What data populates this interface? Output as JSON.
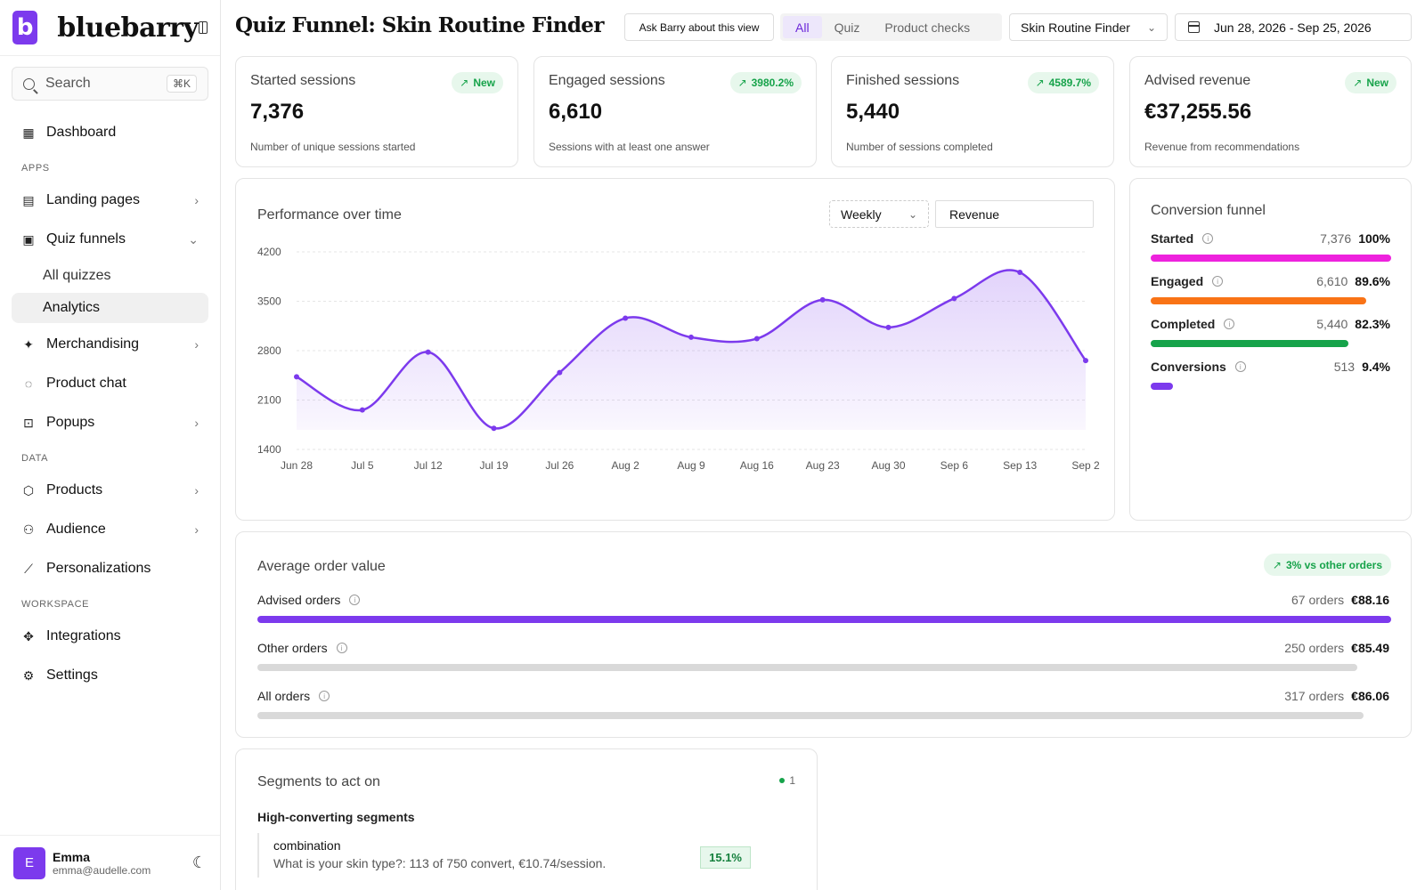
{
  "sidebar": {
    "logo_letter": "b",
    "brand": "bluebarry",
    "search_placeholder": "Search",
    "search_shortcut": "⌘K",
    "dashboard": "Dashboard",
    "apps_label": "APPS",
    "landing_pages": "Landing pages",
    "quiz_funnels": "Quiz funnels",
    "all_quizzes": "All quizzes",
    "analytics": "Analytics",
    "merchandising": "Merchandising",
    "product_chat": "Product chat",
    "popups": "Popups",
    "data_label": "DATA",
    "products": "Products",
    "audience": "Audience",
    "personalizations": "Personalizations",
    "workspace_label": "WORKSPACE",
    "integrations": "Integrations",
    "settings": "Settings",
    "user": {
      "initial": "E",
      "name": "Emma",
      "email": "emma@audelle.com"
    }
  },
  "header": {
    "title": "Quiz Funnel: Skin Routine Finder",
    "ask_button": "Ask Barry about this view",
    "tabs": [
      "All",
      "Quiz",
      "Product checks"
    ],
    "selected_quiz": "Skin Routine Finder",
    "date_range": "Jun 28, 2026 - Sep 25, 2026"
  },
  "stats": [
    {
      "title": "Started sessions",
      "value": "7,376",
      "desc": "Number of unique sessions started",
      "badge": "New"
    },
    {
      "title": "Engaged sessions",
      "value": "6,610",
      "desc": "Sessions with at least one answer",
      "badge": "3980.2%"
    },
    {
      "title": "Finished sessions",
      "value": "5,440",
      "desc": "Number of sessions completed",
      "badge": "4589.7%"
    },
    {
      "title": "Advised revenue",
      "value": "€37,255.56",
      "desc": "Revenue from recommendations",
      "badge": "New"
    }
  ],
  "performance": {
    "title": "Performance over time",
    "interval": "Weekly",
    "metric": "Revenue"
  },
  "chart_data": {
    "type": "area",
    "title": "Performance over time",
    "xlabel": "",
    "ylabel": "",
    "categories": [
      "Jun 28",
      "Jul 5",
      "Jul 12",
      "Jul 19",
      "Jul 26",
      "Aug 2",
      "Aug 9",
      "Aug 16",
      "Aug 23",
      "Aug 30",
      "Sep 6",
      "Sep 13",
      "Sep 2"
    ],
    "series": [
      {
        "values": [
          2430,
          1960,
          2780,
          1700,
          2490,
          3260,
          2990,
          2970,
          3520,
          3130,
          3540,
          3910,
          2660
        ]
      }
    ],
    "yticks": [
      4200,
      3500,
      2800,
      2100,
      1400
    ],
    "ylim": [
      1400,
      4200
    ],
    "color": "#7c3aed",
    "grid": true
  },
  "funnel": {
    "title": "Conversion funnel",
    "rows": [
      {
        "name": "Started",
        "count": "7,376",
        "pct": "100%",
        "fraction": 1.0,
        "color": "#ee22dd"
      },
      {
        "name": "Engaged",
        "count": "6,610",
        "pct": "89.6%",
        "fraction": 0.896,
        "color": "#f97316"
      },
      {
        "name": "Completed",
        "count": "5,440",
        "pct": "82.3%",
        "fraction": 0.823,
        "color": "#16a34a"
      },
      {
        "name": "Conversions",
        "count": "513",
        "pct": "9.4%",
        "fraction": 0.094,
        "color": "#7c3aed"
      }
    ]
  },
  "aov": {
    "title": "Average order value",
    "badge": "3% vs other orders",
    "rows": [
      {
        "name": "Advised orders",
        "orders": "67 orders",
        "value": "€88.16",
        "fraction": 1.0,
        "color": "#7c3aed"
      },
      {
        "name": "Other orders",
        "orders": "250 orders",
        "value": "€85.49",
        "fraction": 0.97,
        "color": "#d9d9d9"
      },
      {
        "name": "All orders",
        "orders": "317 orders",
        "value": "€86.06",
        "fraction": 0.976,
        "color": "#d9d9d9"
      }
    ]
  },
  "segments": {
    "title": "Segments to act on",
    "count": "1",
    "subtitle": "High-converting segments",
    "items": [
      {
        "name": "combination",
        "desc": "What is your skin type?: 113 of 750 convert, €10.74/session.",
        "rate": "15.1%"
      }
    ]
  }
}
